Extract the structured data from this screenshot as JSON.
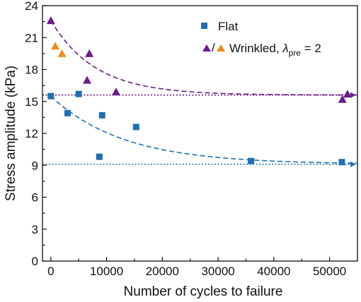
{
  "chart_data": {
    "type": "scatter",
    "xlabel": "Number of cycles to failure",
    "ylabel": "Stress amplitude (kPa)",
    "xlim": [
      -1500,
      55000
    ],
    "ylim": [
      0,
      24
    ],
    "xticks": [
      0,
      10000,
      20000,
      30000,
      40000,
      50000
    ],
    "yticks": [
      0,
      3,
      6,
      9,
      12,
      15,
      18,
      21,
      24
    ],
    "grid": false,
    "legend": {
      "placement": "top-right",
      "entries": [
        {
          "label": "Flat",
          "marker": "square",
          "color": "#1f6fb2"
        },
        {
          "label_main": "Wrinkled, ",
          "label_symbol": "λ",
          "label_sub": "pre",
          "label_tail": " = 2",
          "slash": "/",
          "marker": "triangle",
          "colors": [
            "#6a1b8a",
            "#f08a1c"
          ]
        }
      ]
    },
    "colors": {
      "flat": "#1f6fb2",
      "wrinkled": "#6a1b8a",
      "wrinkled_alt": "#f08a1c"
    },
    "series": [
      {
        "name": "Flat",
        "marker": "square",
        "color": "#1f6fb2",
        "points": [
          [
            0,
            15.5
          ],
          [
            3000,
            13.9
          ],
          [
            5000,
            15.7
          ],
          [
            8700,
            9.8
          ],
          [
            9200,
            13.7
          ],
          [
            15300,
            12.6
          ],
          [
            35900,
            9.4
          ],
          [
            52200,
            9.3
          ]
        ]
      },
      {
        "name": "Wrinkled, λpre = 2",
        "marker": "triangle",
        "color": "#6a1b8a",
        "points": [
          [
            0,
            22.6
          ],
          [
            6500,
            17.0
          ],
          [
            6900,
            19.5
          ],
          [
            11700,
            15.9
          ],
          [
            52300,
            15.2
          ],
          [
            53200,
            15.7
          ]
        ]
      },
      {
        "name": "Wrinkled, λpre = 2",
        "marker": "triangle",
        "color": "#f08a1c",
        "points": [
          [
            800,
            20.2
          ],
          [
            2000,
            19.5
          ]
        ]
      }
    ],
    "fit_curves": [
      {
        "color": "#6a1b8a",
        "style": "dashed",
        "form": "a + b*exp(-x/c)",
        "a": 15.6,
        "b": 7.0,
        "c": 8000
      },
      {
        "color": "#1f6fb2",
        "style": "dashed",
        "form": "a + b*exp(-x/c)",
        "a": 9.1,
        "b": 6.4,
        "c": 13000
      }
    ],
    "limit_lines": [
      {
        "y": 15.6,
        "color": "#6a1b8a",
        "style": "dotted",
        "arrow": true
      },
      {
        "y": 9.1,
        "color": "#1f6fb2",
        "style": "dotted",
        "arrow": true
      }
    ]
  }
}
